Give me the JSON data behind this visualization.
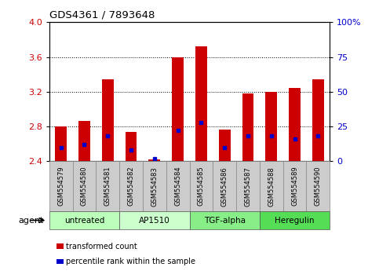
{
  "title": "GDS4361 / 7893648",
  "samples": [
    "GSM554579",
    "GSM554580",
    "GSM554581",
    "GSM554582",
    "GSM554583",
    "GSM554584",
    "GSM554585",
    "GSM554586",
    "GSM554587",
    "GSM554588",
    "GSM554589",
    "GSM554590"
  ],
  "transformed_count": [
    2.8,
    2.86,
    3.34,
    2.74,
    2.42,
    3.6,
    3.72,
    2.76,
    3.18,
    3.2,
    3.24,
    3.34
  ],
  "percentile_rank": [
    10,
    12,
    18,
    8,
    2,
    22,
    28,
    10,
    18,
    18,
    16,
    18
  ],
  "baseline": 2.4,
  "ylim": [
    2.4,
    4.0
  ],
  "yticks_left": [
    2.4,
    2.8,
    3.2,
    3.6,
    4.0
  ],
  "yticks_right": [
    0,
    25,
    50,
    75,
    100
  ],
  "groups": [
    {
      "label": "untreated",
      "start": 0,
      "end": 3,
      "color": "#bbffbb"
    },
    {
      "label": "AP1510",
      "start": 3,
      "end": 6,
      "color": "#ccffcc"
    },
    {
      "label": "TGF-alpha",
      "start": 6,
      "end": 9,
      "color": "#88ee88"
    },
    {
      "label": "Heregulin",
      "start": 9,
      "end": 12,
      "color": "#55dd55"
    }
  ],
  "bar_color": "#cc0000",
  "blue_color": "#0000cc",
  "grid_color": "#000000",
  "left_axis_color": "#cc0000",
  "right_axis_color": "#0000cc",
  "bg_color": "#ffffff",
  "plot_bg": "#ffffff",
  "tick_bg": "#cccccc",
  "bar_width": 0.5,
  "agent_label": "agent",
  "legend_items": [
    {
      "label": "transformed count",
      "color": "#cc0000"
    },
    {
      "label": "percentile rank within the sample",
      "color": "#0000cc"
    }
  ]
}
